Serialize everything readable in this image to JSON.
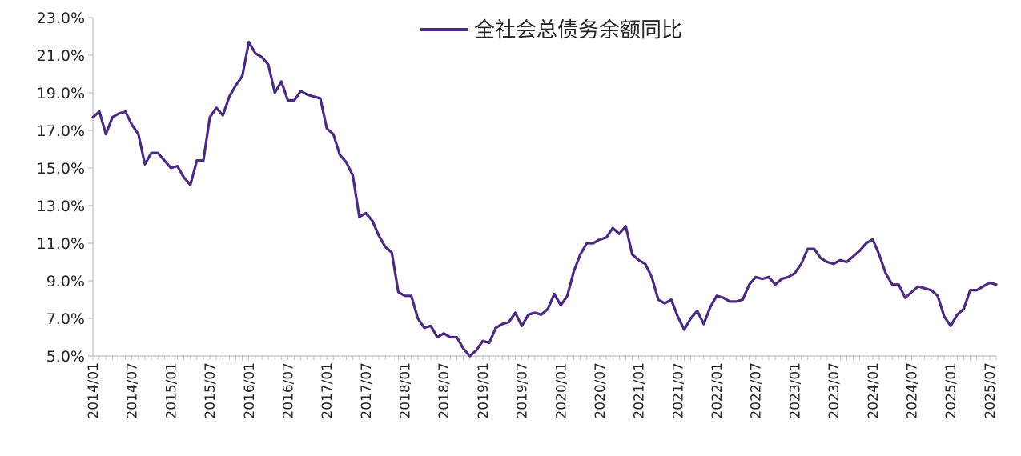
{
  "chart_data": {
    "type": "line",
    "title": "",
    "xlabel": "",
    "ylabel": "",
    "ylim": [
      5.0,
      23.0
    ],
    "y_ticks": [
      "5.0%",
      "7.0%",
      "9.0%",
      "11.0%",
      "13.0%",
      "15.0%",
      "17.0%",
      "19.0%",
      "21.0%",
      "23.0%"
    ],
    "x_tick_labels": [
      "2014/01",
      "2014/07",
      "2015/01",
      "2015/07",
      "2016/01",
      "2016/07",
      "2017/01",
      "2017/07",
      "2018/01",
      "2018/07",
      "2019/01",
      "2019/07",
      "2020/01",
      "2020/07",
      "2021/01",
      "2021/07",
      "2022/01",
      "2022/07",
      "2023/01",
      "2023/07",
      "2024/01",
      "2024/07",
      "2025/01",
      "2025/07"
    ],
    "grid": false,
    "legend_position": "top-center",
    "color": "#4b2a7f",
    "series": [
      {
        "name": "全社会总债务余额同比",
        "x": [
          "2014/01",
          "2014/02",
          "2014/03",
          "2014/04",
          "2014/05",
          "2014/06",
          "2014/07",
          "2014/08",
          "2014/09",
          "2014/10",
          "2014/11",
          "2014/12",
          "2015/01",
          "2015/02",
          "2015/03",
          "2015/04",
          "2015/05",
          "2015/06",
          "2015/07",
          "2015/08",
          "2015/09",
          "2015/10",
          "2015/11",
          "2015/12",
          "2016/01",
          "2016/02",
          "2016/03",
          "2016/04",
          "2016/05",
          "2016/06",
          "2016/07",
          "2016/08",
          "2016/09",
          "2016/10",
          "2016/11",
          "2016/12",
          "2017/01",
          "2017/02",
          "2017/03",
          "2017/04",
          "2017/05",
          "2017/06",
          "2017/07",
          "2017/08",
          "2017/09",
          "2017/10",
          "2017/11",
          "2017/12",
          "2018/01",
          "2018/02",
          "2018/03",
          "2018/04",
          "2018/05",
          "2018/06",
          "2018/07",
          "2018/08",
          "2018/09",
          "2018/10",
          "2018/11",
          "2018/12",
          "2019/01",
          "2019/02",
          "2019/03",
          "2019/04",
          "2019/05",
          "2019/06",
          "2019/07",
          "2019/08",
          "2019/09",
          "2019/10",
          "2019/11",
          "2019/12",
          "2020/01",
          "2020/02",
          "2020/03",
          "2020/04",
          "2020/05",
          "2020/06",
          "2020/07",
          "2020/08",
          "2020/09",
          "2020/10",
          "2020/11",
          "2020/12",
          "2021/01",
          "2021/02",
          "2021/03",
          "2021/04",
          "2021/05",
          "2021/06",
          "2021/07",
          "2021/08",
          "2021/09",
          "2021/10",
          "2021/11",
          "2021/12",
          "2022/01",
          "2022/02",
          "2022/03",
          "2022/04",
          "2022/05",
          "2022/06",
          "2022/07",
          "2022/08",
          "2022/09",
          "2022/10",
          "2022/11",
          "2022/12",
          "2023/01",
          "2023/02",
          "2023/03",
          "2023/04",
          "2023/05",
          "2023/06",
          "2023/07",
          "2023/08",
          "2023/09",
          "2023/10",
          "2023/11",
          "2023/12",
          "2024/01",
          "2024/02",
          "2024/03",
          "2024/04",
          "2024/05",
          "2024/06",
          "2024/07",
          "2024/08",
          "2024/09",
          "2024/10",
          "2024/11",
          "2024/12",
          "2025/01",
          "2025/02",
          "2025/03",
          "2025/04",
          "2025/05",
          "2025/06",
          "2025/07",
          "2025/08"
        ],
        "values": [
          17.7,
          18.0,
          16.8,
          17.7,
          17.9,
          18.0,
          17.3,
          16.8,
          15.2,
          15.8,
          15.8,
          15.4,
          15.0,
          15.1,
          14.5,
          14.1,
          15.4,
          15.4,
          17.7,
          18.2,
          17.8,
          18.8,
          19.4,
          19.9,
          21.7,
          21.1,
          20.9,
          20.5,
          19.0,
          19.6,
          18.6,
          18.6,
          19.1,
          18.9,
          18.8,
          18.7,
          17.1,
          16.8,
          15.7,
          15.3,
          14.6,
          12.4,
          12.6,
          12.2,
          11.4,
          10.8,
          10.5,
          8.4,
          8.2,
          8.2,
          7.0,
          6.5,
          6.6,
          6.0,
          6.2,
          6.0,
          6.0,
          5.4,
          5.0,
          5.3,
          5.8,
          5.7,
          6.5,
          6.7,
          6.8,
          7.3,
          6.6,
          7.2,
          7.3,
          7.2,
          7.5,
          8.3,
          7.7,
          8.2,
          9.5,
          10.4,
          11.0,
          11.0,
          11.2,
          11.3,
          11.8,
          11.5,
          11.9,
          10.4,
          10.1,
          9.9,
          9.2,
          8.0,
          7.8,
          8.0,
          7.1,
          6.4,
          7.0,
          7.4,
          6.7,
          7.6,
          8.2,
          8.1,
          7.9,
          7.9,
          8.0,
          8.8,
          9.2,
          9.1,
          9.2,
          8.8,
          9.1,
          9.2,
          9.4,
          9.9,
          10.7,
          10.7,
          10.2,
          10.0,
          9.9,
          10.1,
          10.0,
          10.3,
          10.6,
          11.0,
          11.2,
          10.4,
          9.4,
          8.8,
          8.8,
          8.1,
          8.4,
          8.7,
          8.6,
          8.5,
          8.2,
          7.1,
          6.6,
          7.2,
          7.5,
          8.5,
          8.5,
          8.7,
          8.9,
          8.8
        ]
      }
    ]
  }
}
